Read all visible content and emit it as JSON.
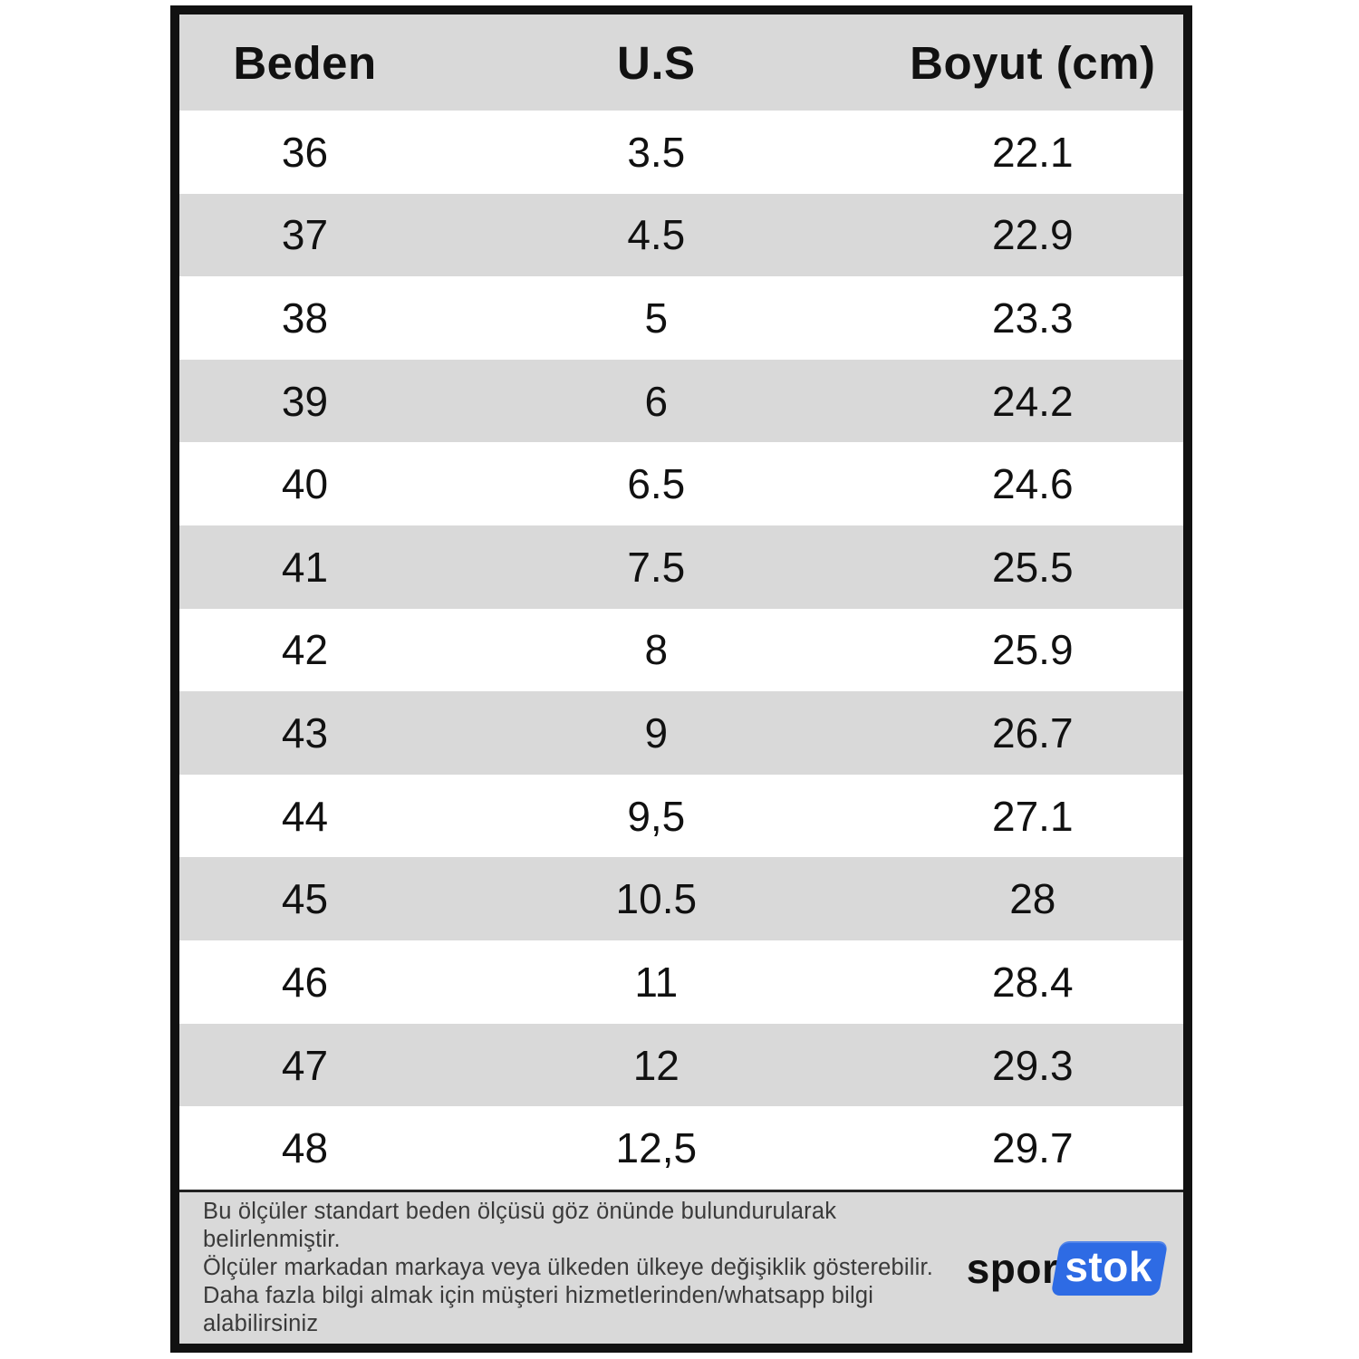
{
  "table": {
    "headers": [
      "Beden",
      "U.S",
      "Boyut (cm)"
    ],
    "rows": [
      [
        "36",
        "3.5",
        "22.1"
      ],
      [
        "37",
        "4.5",
        "22.9"
      ],
      [
        "38",
        "5",
        "23.3"
      ],
      [
        "39",
        "6",
        "24.2"
      ],
      [
        "40",
        "6.5",
        "24.6"
      ],
      [
        "41",
        "7.5",
        "25.5"
      ],
      [
        "42",
        "8",
        "25.9"
      ],
      [
        "43",
        "9",
        "26.7"
      ],
      [
        "44",
        "9,5",
        "27.1"
      ],
      [
        "45",
        "10.5",
        "28"
      ],
      [
        "46",
        "11",
        "28.4"
      ],
      [
        "47",
        "12",
        "29.3"
      ],
      [
        "48",
        "12,5",
        "29.7"
      ]
    ]
  },
  "footer": {
    "lines": [
      "Bu ölçüler standart beden ölçüsü göz önünde bulundurularak belirlenmiştir.",
      "Ölçüler markadan markaya veya ülkeden ülkeye değişiklik gösterebilir.",
      "Daha fazla bilgi almak için müşteri hizmetlerinden/whatsapp bilgi alabilirsiniz"
    ],
    "logo": {
      "part1": "spor",
      "part2": "stok"
    }
  },
  "colors": {
    "row_stripe": "#d9d9d9",
    "border": "#111111",
    "footer_text": "#3a3a3a",
    "logo_blue": "#2e6be4"
  }
}
